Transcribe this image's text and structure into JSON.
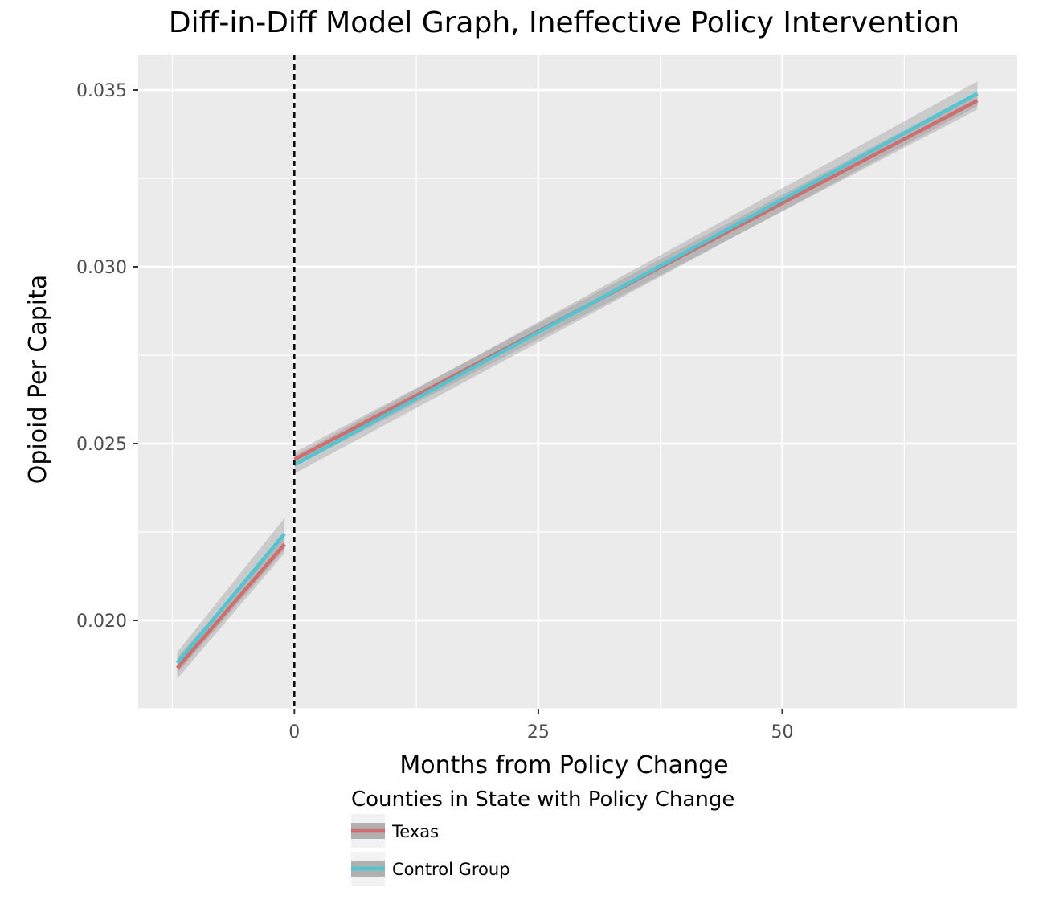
{
  "chart_data": {
    "type": "line",
    "title": "Diff-in-Diff Model Graph, Ineffective Policy Intervention",
    "xlabel": "Months from Policy Change",
    "ylabel": "Opioid Per Capita",
    "xlim": [
      -16,
      74
    ],
    "ylim": [
      0.0175,
      0.036
    ],
    "x_ticks": [
      0,
      25,
      50
    ],
    "x_tick_labels": [
      "0",
      "25",
      "50"
    ],
    "y_ticks": [
      0.02,
      0.025,
      0.03,
      0.035
    ],
    "y_tick_labels": [
      "0.020",
      "0.025",
      "0.030",
      "0.035"
    ],
    "grid": true,
    "cutoff_line": {
      "x": 0,
      "style": "dashed",
      "color": "#000000"
    },
    "legend": {
      "title": "Counties in State with Policy Change",
      "placement": "bottom"
    },
    "series": [
      {
        "name": "Texas",
        "color": "#d36c6c",
        "segments": [
          {
            "x": [
              -12,
              -1
            ],
            "y": [
              0.01865,
              0.02215
            ],
            "se": [
              0.0003,
              0.00025
            ]
          },
          {
            "x": [
              0,
              70
            ],
            "y": [
              0.02455,
              0.0347
            ],
            "se": [
              0.0002,
              0.00025
            ]
          }
        ]
      },
      {
        "name": "Control Group",
        "color": "#4fc6d4",
        "segments": [
          {
            "x": [
              -12,
              -1
            ],
            "y": [
              0.0188,
              0.02245
            ],
            "se": [
              0.0003,
              0.00045
            ]
          },
          {
            "x": [
              0,
              70
            ],
            "y": [
              0.0244,
              0.0349
            ],
            "se": [
              0.00025,
              0.00035
            ]
          }
        ]
      }
    ],
    "colors": {
      "panel_background": "#ebebeb",
      "grid_major": "#ffffff",
      "ribbon": "#999999"
    }
  }
}
